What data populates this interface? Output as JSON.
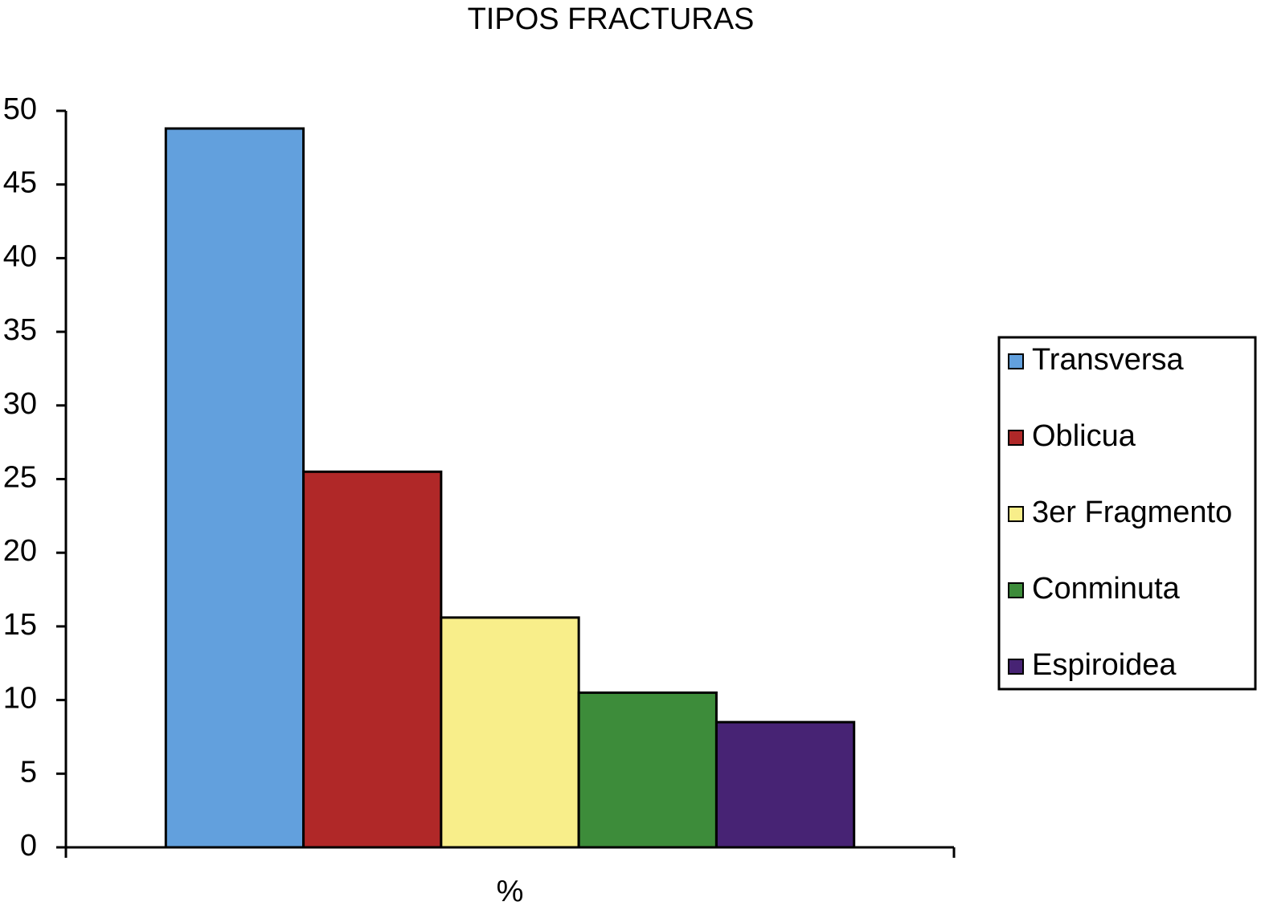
{
  "chart_data": {
    "type": "bar",
    "title": "TIPOS FRACTURAS",
    "categories": [
      "%"
    ],
    "series": [
      {
        "name": "Transversa",
        "color": "#62a0dd",
        "values": [
          48.8
        ]
      },
      {
        "name": "Oblicua",
        "color": "#b02828",
        "values": [
          25.5
        ]
      },
      {
        "name": "3er Fragmento",
        "color": "#f8ee8a",
        "values": [
          15.6
        ]
      },
      {
        "name": "Conminuta",
        "color": "#3d8c3a",
        "values": [
          10.5
        ]
      },
      {
        "name": "Espiroidea",
        "color": "#472374",
        "values": [
          8.5
        ]
      }
    ],
    "ylim": [
      0,
      50
    ],
    "yticks": [
      0,
      5,
      10,
      15,
      20,
      25,
      30,
      35,
      40,
      45,
      50
    ],
    "grid": false,
    "legend": "right"
  }
}
